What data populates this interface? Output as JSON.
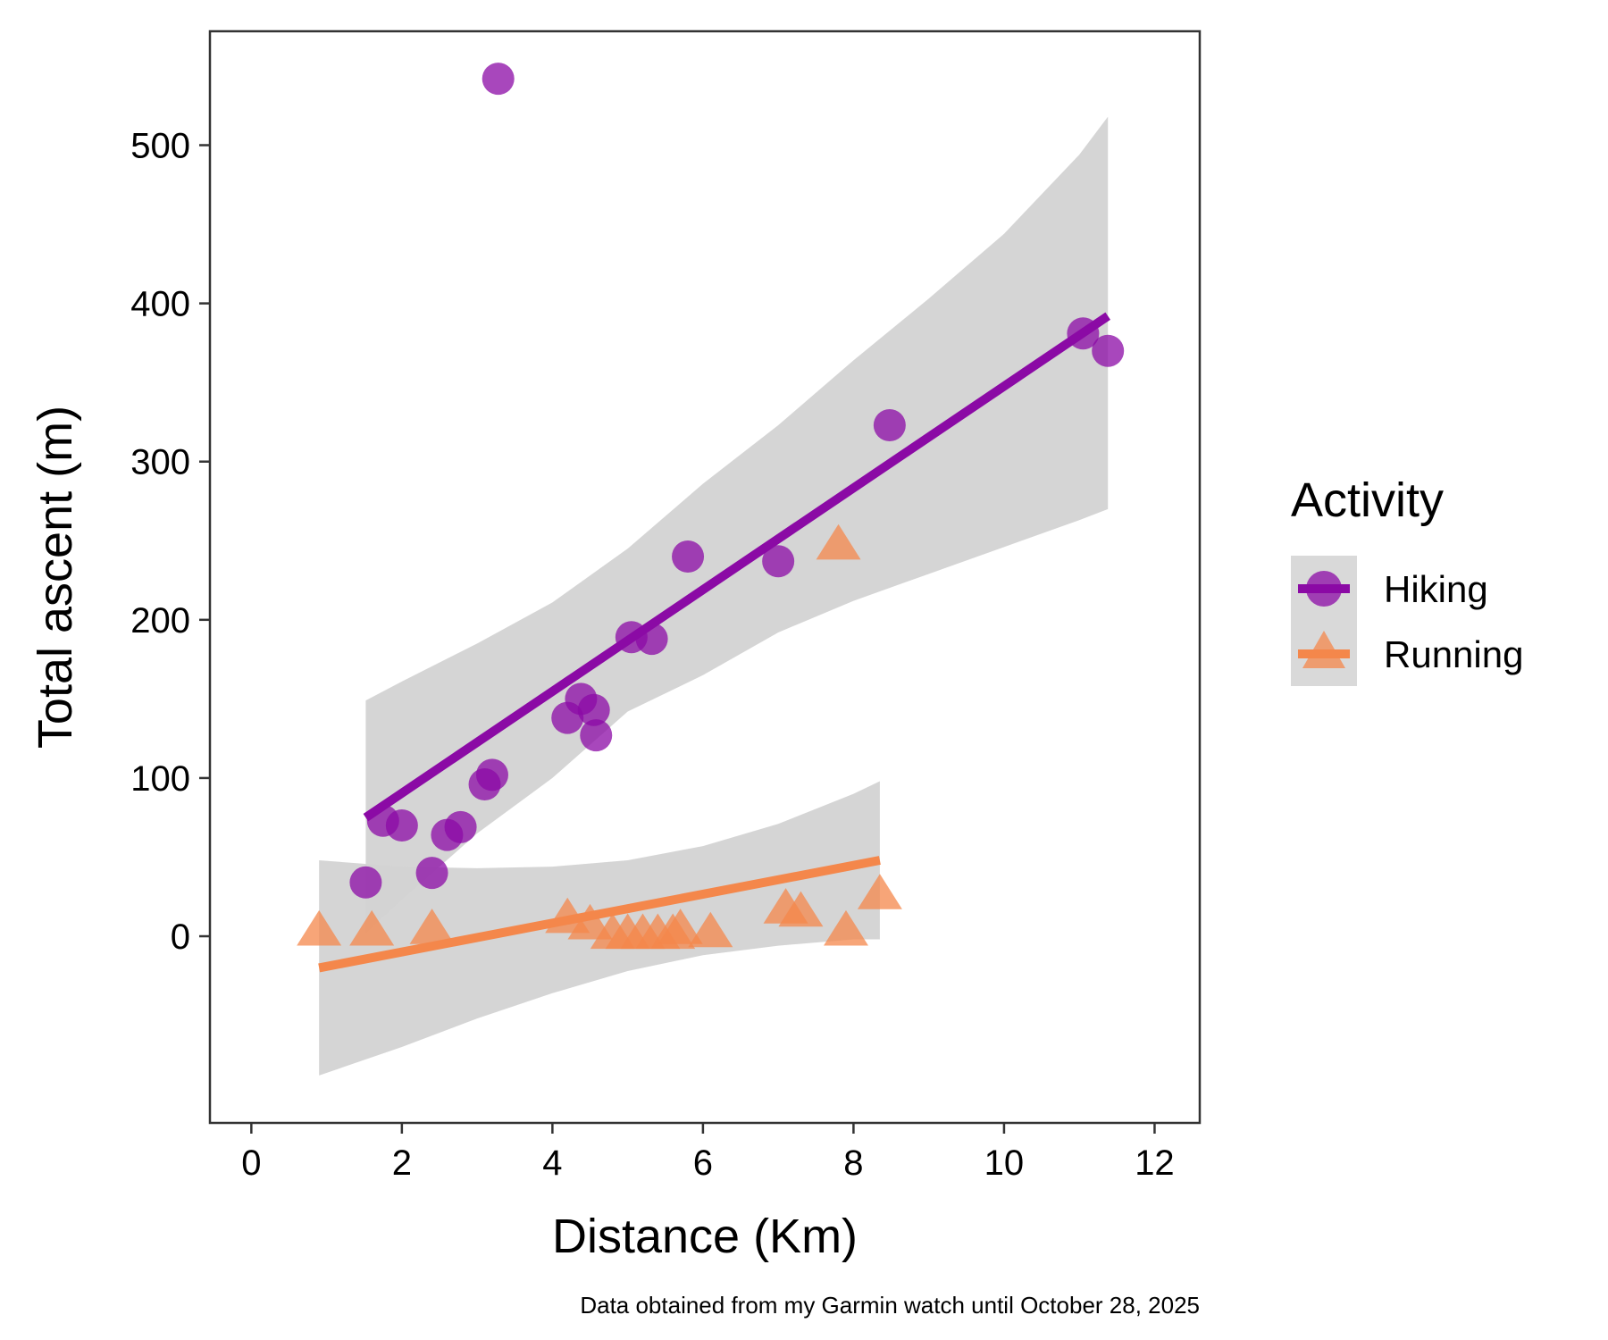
{
  "colors": {
    "hiking": "#8B0AA5",
    "running": "#F4874B",
    "ribbon": "#D3D3D3",
    "panel_border": "#333333",
    "legend_key_bg": "#D9D9D9"
  },
  "chart_data": {
    "type": "scatter",
    "xlabel": "Distance (Km)",
    "ylabel": "Total ascent (m)",
    "xlim": [
      -0.55,
      12.6
    ],
    "ylim": [
      -118,
      572
    ],
    "x_ticks": [
      0,
      2,
      4,
      6,
      8,
      10,
      12
    ],
    "y_ticks": [
      0,
      100,
      200,
      300,
      400,
      500
    ],
    "grid": false,
    "legend": {
      "title": "Activity",
      "placement": "right",
      "entries": [
        {
          "label": "Hiking",
          "shape": "circle",
          "color": "hiking"
        },
        {
          "label": "Running",
          "shape": "triangle",
          "color": "running"
        }
      ]
    },
    "caption": "Data obtained from my Garmin watch until October 28, 2025",
    "series": [
      {
        "name": "Hiking",
        "shape": "circle",
        "points": [
          {
            "x": 3.28,
            "y": 542
          },
          {
            "x": 1.52,
            "y": 34
          },
          {
            "x": 1.75,
            "y": 73
          },
          {
            "x": 2.0,
            "y": 70
          },
          {
            "x": 2.4,
            "y": 40
          },
          {
            "x": 2.6,
            "y": 64
          },
          {
            "x": 2.78,
            "y": 69
          },
          {
            "x": 3.1,
            "y": 96
          },
          {
            "x": 3.2,
            "y": 102
          },
          {
            "x": 4.2,
            "y": 138
          },
          {
            "x": 4.38,
            "y": 150
          },
          {
            "x": 4.55,
            "y": 143
          },
          {
            "x": 4.58,
            "y": 127
          },
          {
            "x": 5.05,
            "y": 189
          },
          {
            "x": 5.32,
            "y": 188
          },
          {
            "x": 5.8,
            "y": 240
          },
          {
            "x": 7.0,
            "y": 237
          },
          {
            "x": 8.48,
            "y": 323
          },
          {
            "x": 11.05,
            "y": 381
          },
          {
            "x": 11.38,
            "y": 370
          }
        ],
        "fit": {
          "x": [
            1.52,
            11.38
          ],
          "y": [
            75,
            392
          ]
        },
        "ribbon": {
          "x": [
            1.52,
            2.0,
            3.0,
            4.0,
            5.0,
            6.0,
            7.0,
            8.0,
            9.0,
            10.0,
            11.0,
            11.38
          ],
          "lower": [
            2,
            23,
            65,
            100,
            142,
            165,
            192,
            212,
            229,
            246,
            263,
            270
          ],
          "upper": [
            149,
            161,
            185,
            211,
            245,
            286,
            323,
            364,
            403,
            444,
            494,
            518
          ]
        }
      },
      {
        "name": "Running",
        "shape": "triangle",
        "points": [
          {
            "x": 0.9,
            "y": 4
          },
          {
            "x": 1.6,
            "y": 4
          },
          {
            "x": 2.4,
            "y": 5
          },
          {
            "x": 4.2,
            "y": 12
          },
          {
            "x": 4.5,
            "y": 8
          },
          {
            "x": 4.8,
            "y": 2
          },
          {
            "x": 5.0,
            "y": 2
          },
          {
            "x": 5.2,
            "y": 2
          },
          {
            "x": 5.4,
            "y": 2
          },
          {
            "x": 5.6,
            "y": 2
          },
          {
            "x": 5.7,
            "y": 5
          },
          {
            "x": 6.1,
            "y": 3
          },
          {
            "x": 7.1,
            "y": 18
          },
          {
            "x": 7.3,
            "y": 16
          },
          {
            "x": 7.8,
            "y": 248
          },
          {
            "x": 7.9,
            "y": 4
          },
          {
            "x": 8.35,
            "y": 27
          }
        ],
        "fit": {
          "x": [
            0.9,
            8.35
          ],
          "y": [
            -20,
            48
          ]
        },
        "ribbon": {
          "x": [
            0.9,
            2.0,
            3.0,
            4.0,
            5.0,
            6.0,
            7.0,
            8.0,
            8.35
          ],
          "lower": [
            -88,
            -70,
            -52,
            -36,
            -22,
            -12,
            -6,
            -2,
            -2
          ],
          "upper": [
            48,
            44,
            43,
            44,
            48,
            57,
            71,
            90,
            98
          ]
        }
      }
    ]
  }
}
